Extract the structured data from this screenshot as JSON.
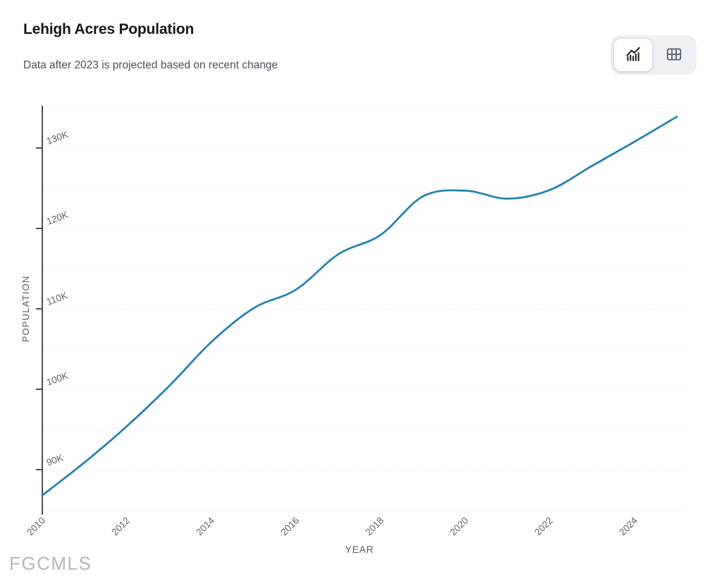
{
  "header": {
    "title": "Lehigh Acres Population",
    "subtitle": "Data after 2023 is projected based on recent change"
  },
  "view_toggle": {
    "options": [
      {
        "name": "chart-view",
        "icon": "trend-chart-icon",
        "active": true
      },
      {
        "name": "table-view",
        "icon": "table-grid-icon",
        "active": false
      }
    ]
  },
  "watermark": "FGCMLS",
  "colors": {
    "line": "#2183ab",
    "axis": "#4b4f54",
    "gridline": "#d8d8d8",
    "tick_label": "#5d6167",
    "axis_title": "#53575c"
  },
  "chart_data": {
    "type": "line",
    "title": "Lehigh Acres Population",
    "xlabel": "YEAR",
    "ylabel": "POPULATION",
    "x": [
      2010,
      2011,
      2012,
      2013,
      2014,
      2015,
      2016,
      2017,
      2018,
      2019,
      2020,
      2021,
      2022,
      2023,
      2024,
      2025
    ],
    "values_thousands": [
      86.8,
      90.9,
      95.4,
      100.4,
      105.9,
      110.1,
      112.4,
      116.8,
      119.2,
      124.0,
      124.7,
      123.7,
      124.8,
      127.8,
      130.8,
      133.9
    ],
    "x_ticks": [
      2010,
      2012,
      2014,
      2016,
      2018,
      2020,
      2022,
      2024
    ],
    "x_tick_labels": [
      "2010",
      "2012",
      "2014",
      "2016",
      "2018",
      "2020",
      "2022",
      "2024"
    ],
    "y_ticks_thousands": [
      90,
      100,
      110,
      120,
      130
    ],
    "y_tick_labels": [
      "90K",
      "100K",
      "110K",
      "120K",
      "130K"
    ],
    "ylim_thousands": [
      85,
      135
    ],
    "xlim": [
      2010,
      2025
    ],
    "grid": "horizontal-dotted-every-5K",
    "legend": "none",
    "note": "values after 2023 are projected"
  }
}
